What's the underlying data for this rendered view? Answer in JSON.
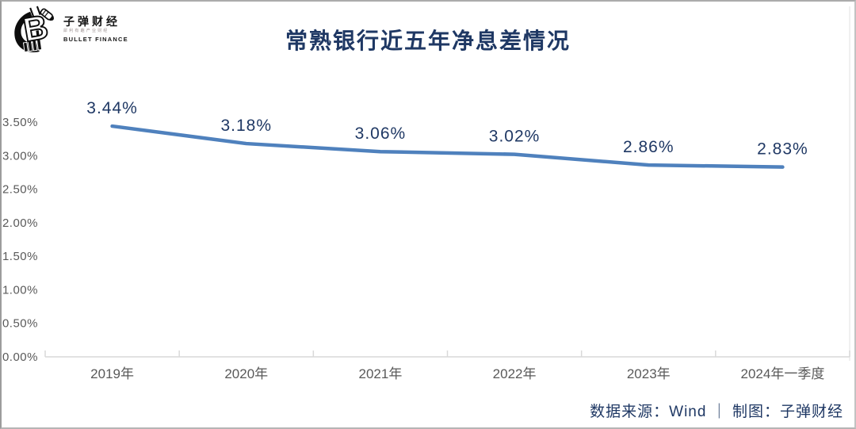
{
  "page": {
    "background": "#ffffff",
    "frame_border_color": "#ababab"
  },
  "logo": {
    "name": "子弹财经",
    "tagline": "犀利有趣产业财经",
    "subname": "BULLET FINANCE"
  },
  "header": {
    "title": "常熟银行近五年净息差情况",
    "title_color": "#1f3864"
  },
  "footer": {
    "credit": "数据来源：Wind ｜ 制图：子弹财经"
  },
  "chart_data": {
    "type": "line",
    "title": "常熟银行近五年净息差情况",
    "categories": [
      "2019年",
      "2020年",
      "2021年",
      "2022年",
      "2023年",
      "2024年一季度"
    ],
    "values": [
      3.44,
      3.18,
      3.06,
      3.02,
      2.86,
      2.83
    ],
    "data_labels": [
      "3.44%",
      "3.18%",
      "3.06%",
      "3.02%",
      "2.86%",
      "2.83%"
    ],
    "y_tick_labels": [
      "3.50%",
      "3.00%",
      "2.50%",
      "2.00%",
      "1.50%",
      "1.00%",
      "0.50%",
      "0.00%"
    ],
    "y_tick_values": [
      3.5,
      3.0,
      2.5,
      2.0,
      1.5,
      1.0,
      0.5,
      0.0
    ],
    "xlabel": "",
    "ylabel": "",
    "ylim": [
      0,
      3.5
    ],
    "grid": false,
    "legend": "none",
    "line_color": "#4f81bd",
    "data_label_color": "#1f3864",
    "axis_color": "#d9d9d9",
    "tick_label_color": "#595959"
  }
}
